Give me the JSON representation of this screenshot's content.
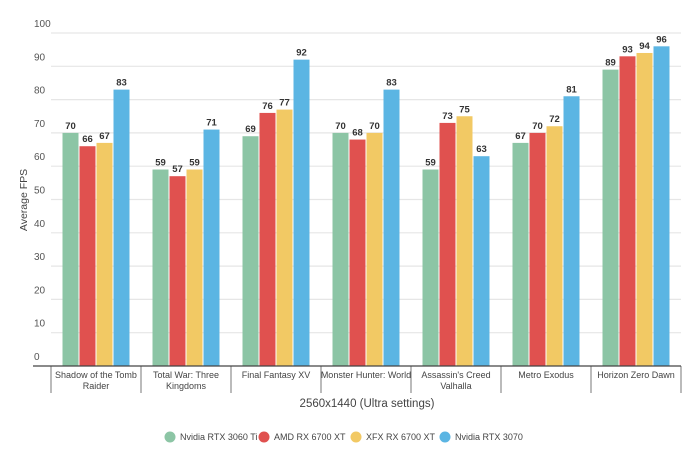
{
  "chart_data": {
    "type": "bar",
    "title": "",
    "xlabel": "2560x1440 (Ultra settings)",
    "ylabel": "Average FPS",
    "ylim": [
      0,
      100
    ],
    "yticks": [
      0,
      10,
      20,
      30,
      40,
      50,
      60,
      70,
      80,
      90,
      100
    ],
    "grid": true,
    "legend_position": "bottom",
    "categories": [
      [
        "Shadow of the Tomb",
        "Raider"
      ],
      [
        "Total War: Three",
        "Kingdoms"
      ],
      [
        "Final Fantasy XV"
      ],
      [
        "Monster Hunter: World"
      ],
      [
        "Assassin's Creed",
        "Valhalla"
      ],
      [
        "Metro Exodus"
      ],
      [
        "Horizon Zero Dawn"
      ]
    ],
    "series": [
      {
        "name": "Nvidia RTX 3060 Ti",
        "color": "#8cc5a5",
        "values": [
          70,
          59,
          69,
          70,
          59,
          67,
          89
        ]
      },
      {
        "name": "AMD RX 6700 XT",
        "color": "#e0514f",
        "values": [
          66,
          57,
          76,
          68,
          73,
          70,
          93
        ]
      },
      {
        "name": "XFX RX 6700 XT",
        "color": "#f2c964",
        "values": [
          67,
          59,
          77,
          70,
          75,
          72,
          94
        ]
      },
      {
        "name": "Nvidia RTX 3070",
        "color": "#5bb5e3",
        "values": [
          83,
          71,
          92,
          83,
          63,
          81,
          96
        ]
      }
    ]
  }
}
